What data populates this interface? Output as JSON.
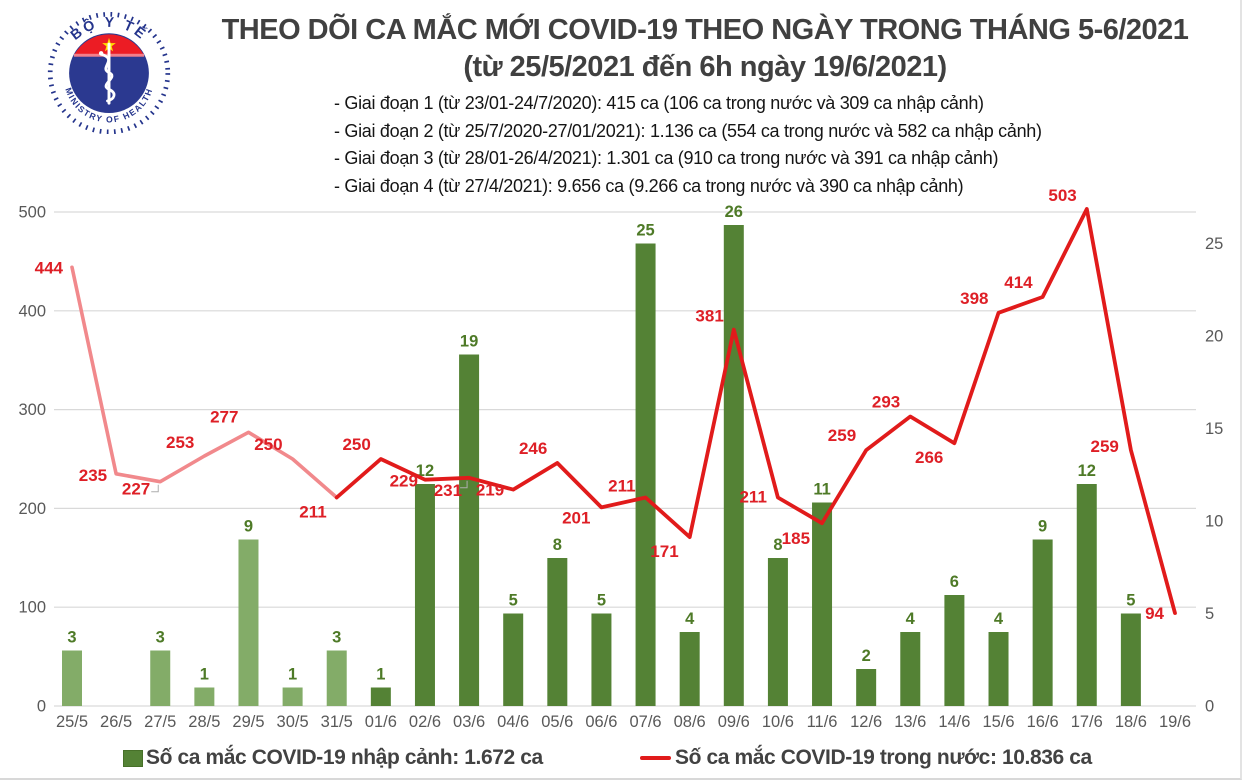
{
  "header": {
    "logo": {
      "top_text": "BỘ Y TẾ",
      "bottom_text": "MINISTRY OF HEALTH"
    },
    "title": "THEO DÕI CA MẮC MỚI COVID-19 THEO NGÀY TRONG THÁNG 5-6/2021",
    "subtitle": "(từ 25/5/2021 đến 6h ngày 19/6/2021)",
    "notes": [
      "- Giai đoạn 1 (từ 23/01-24/7/2020): 415 ca (106 ca trong nước và 309 ca nhập cảnh)",
      "- Giai đoạn 2 (từ 25/7/2020-27/01/2021): 1.136 ca (554 ca trong nước và 582 ca nhập cảnh)",
      "- Giai đoạn 3 (từ 28/01-26/4/2021): 1.301 ca (910 ca trong nước và 391 ca nhập cảnh)",
      "- Giai đoạn 4 (từ 27/4/2021): 9.656 ca (9.266 ca trong nước và 390 ca nhập cảnh)"
    ]
  },
  "chart_data": {
    "type": "combo",
    "title": "Theo dõi ca mắc mới COVID-19 theo ngày trong tháng 5-6/2021",
    "categories": [
      "25/5",
      "26/5",
      "27/5",
      "28/5",
      "29/5",
      "30/5",
      "31/5",
      "01/6",
      "02/6",
      "03/6",
      "04/6",
      "05/6",
      "06/6",
      "07/6",
      "08/6",
      "09/6",
      "10/6",
      "11/6",
      "12/6",
      "13/6",
      "14/6",
      "15/6",
      "16/6",
      "17/6",
      "18/6",
      "19/6"
    ],
    "series": [
      {
        "name": "Số ca mắc COVID-19 nhập cảnh",
        "type": "bar",
        "axis": "right",
        "values": [
          3,
          0,
          3,
          1,
          9,
          1,
          3,
          1,
          12,
          19,
          5,
          8,
          5,
          25,
          4,
          26,
          8,
          11,
          2,
          4,
          6,
          4,
          9,
          12,
          5,
          0
        ],
        "color_early": "#83AC68",
        "color_late": "#548235",
        "early_until_index": 6,
        "label_color": "#4E7A27"
      },
      {
        "name": "Số ca mắc COVID-19 trong nước",
        "type": "line",
        "axis": "left",
        "values": [
          444,
          235,
          227,
          253,
          277,
          250,
          211,
          250,
          229,
          231,
          219,
          246,
          201,
          211,
          171,
          381,
          211,
          185,
          259,
          293,
          266,
          398,
          414,
          503,
          259,
          94
        ],
        "color_early": "#F1898C",
        "color_late": "#E11B1B",
        "early_until_index": 6,
        "label_color": "#DE1F26",
        "label_offsets": [
          [
            -9,
            6
          ],
          [
            -9,
            7
          ],
          [
            -10,
            13
          ],
          [
            -10,
            -8
          ],
          [
            -10,
            -10
          ],
          [
            -10,
            -9
          ],
          [
            -10,
            20
          ],
          [
            -10,
            -9
          ],
          [
            -7,
            7
          ],
          [
            -7,
            18
          ],
          [
            -9,
            6
          ],
          [
            -10,
            -9
          ],
          [
            -11,
            16
          ],
          [
            -10,
            -6
          ],
          [
            -11,
            20
          ],
          [
            -10,
            -8
          ],
          [
            -11,
            5
          ],
          [
            -12,
            21
          ],
          [
            -10,
            -9
          ],
          [
            -10,
            -9
          ],
          [
            -11,
            20
          ],
          [
            -10,
            -9
          ],
          [
            -10,
            -9
          ],
          [
            -10,
            -8
          ],
          [
            -12,
            2
          ],
          [
            -11,
            6
          ]
        ],
        "leader_indexes": [
          2,
          9
        ]
      }
    ],
    "left_axis": {
      "min": 0,
      "max": 500,
      "ticks": [
        0,
        100,
        200,
        300,
        400,
        500
      ]
    },
    "right_axis": {
      "min": 0,
      "max": 27,
      "ticks": [
        0,
        5,
        10,
        15,
        20,
        25
      ]
    },
    "grid": true,
    "legend_position": "bottom",
    "gridline_color": "#D9D9D9",
    "axis_label_color": "#595959"
  },
  "legend": {
    "items": [
      {
        "swatch": "bar",
        "label": "Số ca mắc COVID-19 nhập cảnh: 1.672 ca"
      },
      {
        "swatch": "line",
        "label": "Số ca mắc COVID-19 trong nước: 10.836 ca"
      }
    ]
  }
}
